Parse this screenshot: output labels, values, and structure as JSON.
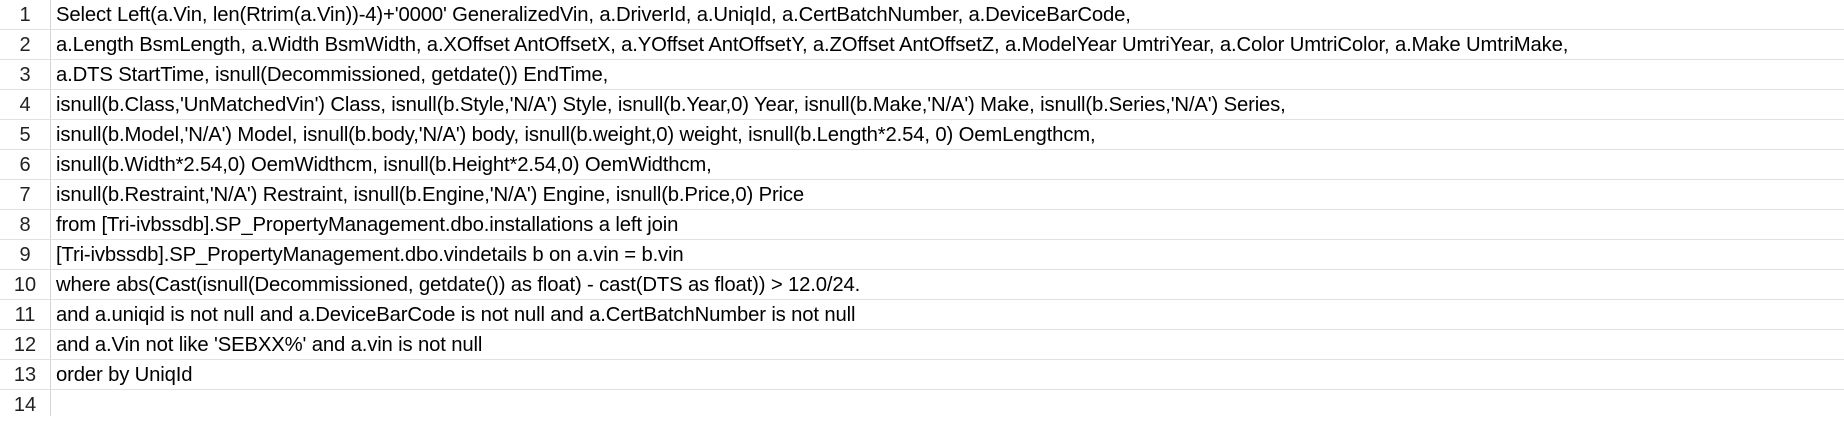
{
  "rows": [
    {
      "num": "1",
      "text": "Select Left(a.Vin, len(Rtrim(a.Vin))-4)+'0000' GeneralizedVin, a.DriverId, a.UniqId, a.CertBatchNumber, a.DeviceBarCode,"
    },
    {
      "num": "2",
      "text": "a.Length BsmLength, a.Width BsmWidth, a.XOffset AntOffsetX, a.YOffset AntOffsetY, a.ZOffset AntOffsetZ, a.ModelYear UmtriYear, a.Color UmtriColor, a.Make UmtriMake,"
    },
    {
      "num": "3",
      "text": "a.DTS StartTime, isnull(Decommissioned, getdate()) EndTime,"
    },
    {
      "num": "4",
      "text": "isnull(b.Class,'UnMatchedVin') Class, isnull(b.Style,'N/A') Style, isnull(b.Year,0) Year, isnull(b.Make,'N/A') Make, isnull(b.Series,'N/A') Series,"
    },
    {
      "num": "5",
      "text": "isnull(b.Model,'N/A') Model, isnull(b.body,'N/A') body, isnull(b.weight,0) weight, isnull(b.Length*2.54, 0) OemLengthcm,"
    },
    {
      "num": "6",
      "text": "isnull(b.Width*2.54,0) OemWidthcm, isnull(b.Height*2.54,0) OemWidthcm,"
    },
    {
      "num": "7",
      "text": "isnull(b.Restraint,'N/A') Restraint, isnull(b.Engine,'N/A') Engine, isnull(b.Price,0) Price"
    },
    {
      "num": "8",
      "text": "from [Tri-ivbssdb].SP_PropertyManagement.dbo.installations a left join"
    },
    {
      "num": "9",
      "text": "[Tri-ivbssdb].SP_PropertyManagement.dbo.vindetails b on a.vin = b.vin"
    },
    {
      "num": "10",
      "text": "where abs(Cast(isnull(Decommissioned, getdate()) as float) - cast(DTS as float)) > 12.0/24."
    },
    {
      "num": "11",
      "text": "and a.uniqid is not null and a.DeviceBarCode is not null and a.CertBatchNumber is not null"
    },
    {
      "num": "12",
      "text": "and a.Vin not like 'SEBXX%' and a.vin is not null"
    },
    {
      "num": "13",
      "text": "order by UniqId"
    },
    {
      "num": "14",
      "text": ""
    }
  ]
}
